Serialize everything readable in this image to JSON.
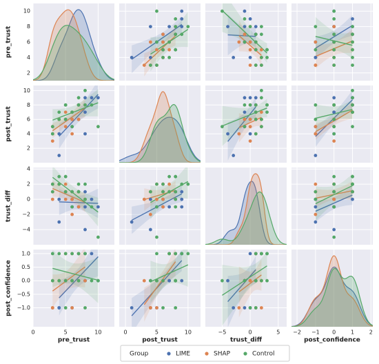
{
  "chart_data": {
    "type": "pairplot",
    "variables": [
      {
        "label": "pre_trust",
        "xlim": [
          0,
          12.5
        ],
        "xticks": [
          0,
          5,
          10
        ],
        "ylim": [
          1,
          11
        ],
        "yticks": [
          2,
          4,
          6,
          8,
          10
        ]
      },
      {
        "label": "post_trust",
        "xlim": [
          -1,
          12
        ],
        "xticks": [
          0,
          5,
          10
        ],
        "ylim": [
          0,
          10.7
        ],
        "yticks": [
          2,
          4,
          6,
          8,
          10
        ]
      },
      {
        "label": "trust_diff",
        "xlim": [
          -8,
          6.5
        ],
        "xticks": [
          {
            "value": -5,
            "label": "−5"
          },
          0,
          5
        ],
        "ylim": [
          -6,
          4.2
        ],
        "yticks": [
          {
            "value": -4,
            "label": "−4"
          },
          {
            "value": -2,
            "label": "−2"
          },
          0,
          2,
          4
        ]
      },
      {
        "label": "post_confidence",
        "xlim": [
          -2.3,
          2.1
        ],
        "xticks": [
          {
            "value": -2,
            "label": "−2"
          },
          {
            "value": -1,
            "label": "−1"
          },
          0,
          1,
          2
        ],
        "ylim": [
          -1.7,
          1.15
        ],
        "yticks": [
          {
            "value": -1,
            "label": "−1.0"
          },
          {
            "value": -0.5,
            "label": "−0.5"
          },
          {
            "value": 0,
            "label": "0.0"
          },
          {
            "value": 0.5,
            "label": "0.5"
          },
          {
            "value": 1,
            "label": "1.0"
          }
        ]
      }
    ],
    "legend_title": "Group",
    "series": [
      {
        "name": "LIME",
        "color": "#4c72b0",
        "values": [
          [
            7,
            6,
            8,
            5,
            9,
            6,
            7,
            4,
            8,
            4,
            8,
            6,
            7,
            10
          ],
          [
            8,
            7,
            9,
            6,
            9,
            5,
            6,
            4,
            7,
            1,
            4,
            6,
            8,
            9
          ],
          [
            1,
            1,
            1,
            1,
            0,
            -1,
            -1,
            0,
            -1,
            -3,
            -4,
            0,
            1,
            -1
          ],
          [
            1,
            0,
            1,
            0,
            1,
            -1,
            0,
            -1,
            0,
            -1,
            0,
            0,
            1,
            0
          ]
        ]
      },
      {
        "name": "SHAP",
        "color": "#dd8452",
        "values": [
          [
            5,
            3,
            4,
            6,
            5,
            6,
            3,
            7,
            4,
            5,
            6,
            8,
            3,
            7
          ],
          [
            6,
            5,
            6,
            7,
            5,
            4,
            3,
            8,
            6,
            7,
            6,
            8,
            4,
            6
          ],
          [
            1,
            2,
            2,
            1,
            0,
            -2,
            0,
            1,
            2,
            2,
            0,
            0,
            1,
            -1
          ],
          [
            0,
            -1,
            0,
            1,
            0,
            -1,
            0,
            1,
            0,
            1,
            0,
            0,
            -1,
            0
          ]
        ]
      },
      {
        "name": "Control",
        "color": "#55a868",
        "values": [
          [
            3,
            4,
            5,
            6,
            7,
            8,
            5,
            9,
            8,
            10,
            4,
            3,
            7,
            6,
            5
          ],
          [
            5,
            6,
            6,
            7,
            8,
            8,
            8,
            8,
            10,
            5,
            7,
            4,
            9,
            5,
            8
          ],
          [
            2,
            2,
            1,
            1,
            1,
            0,
            3,
            -1,
            2,
            -5,
            3,
            1,
            2,
            -1,
            3
          ],
          [
            1,
            0,
            -1,
            1,
            0,
            -1,
            1,
            0,
            1,
            0,
            1,
            0,
            1,
            0,
            0
          ]
        ]
      }
    ]
  }
}
